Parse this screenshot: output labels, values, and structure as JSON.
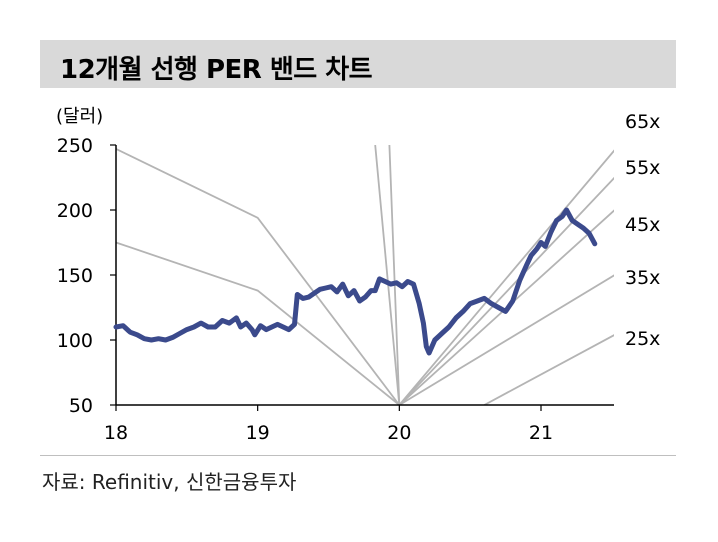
{
  "title": "12개월 선행 PER 밴드 차트",
  "unit_label": "(달러)",
  "source": "자료: Refinitiv, 신한금융투자",
  "colors": {
    "price": "#3b4a8c",
    "band": "#b4b4b4",
    "title_bg": "#d9d9d9"
  },
  "chart_data": {
    "type": "line",
    "ylim": [
      50,
      250
    ],
    "yticks": [
      50,
      100,
      150,
      200,
      250
    ],
    "xlim": [
      18,
      21.52
    ],
    "xticks": [
      18,
      19,
      20,
      21
    ],
    "xtick_labels": [
      "18",
      "19",
      "20",
      "21"
    ],
    "grid": false,
    "bands": [
      {
        "label": "65x",
        "points": [
          [
            19.83,
            250
          ],
          [
            20.0,
            50
          ],
          [
            21.55,
            250
          ]
        ]
      },
      {
        "label": "55x",
        "points": [
          [
            19.93,
            250
          ],
          [
            20.0,
            50
          ],
          [
            21.52,
            225
          ]
        ]
      },
      {
        "label": "45x",
        "points": [
          [
            18.0,
            247
          ],
          [
            19.0,
            194
          ],
          [
            20.0,
            50
          ],
          [
            21.52,
            200
          ]
        ]
      },
      {
        "label": "35x",
        "points": [
          [
            18.0,
            175
          ],
          [
            19.0,
            138
          ],
          [
            20.0,
            50
          ],
          [
            21.52,
            150
          ]
        ]
      },
      {
        "label": "25x",
        "points": [
          [
            20.6,
            50
          ],
          [
            21.52,
            104
          ]
        ]
      }
    ],
    "series": [
      {
        "points": [
          [
            18.0,
            110
          ],
          [
            18.05,
            111
          ],
          [
            18.1,
            106
          ],
          [
            18.15,
            104
          ],
          [
            18.2,
            101
          ],
          [
            18.25,
            100
          ],
          [
            18.3,
            101
          ],
          [
            18.35,
            100
          ],
          [
            18.4,
            102
          ],
          [
            18.45,
            105
          ],
          [
            18.5,
            108
          ],
          [
            18.55,
            110
          ],
          [
            18.6,
            113
          ],
          [
            18.65,
            110
          ],
          [
            18.7,
            110
          ],
          [
            18.75,
            115
          ],
          [
            18.8,
            113
          ],
          [
            18.85,
            117
          ],
          [
            18.88,
            110
          ],
          [
            18.92,
            113
          ],
          [
            18.96,
            108
          ],
          [
            18.98,
            104
          ],
          [
            19.02,
            111
          ],
          [
            19.06,
            108
          ],
          [
            19.1,
            110
          ],
          [
            19.14,
            112
          ],
          [
            19.18,
            110
          ],
          [
            19.22,
            108
          ],
          [
            19.26,
            112
          ],
          [
            19.28,
            135
          ],
          [
            19.32,
            132
          ],
          [
            19.36,
            133
          ],
          [
            19.4,
            136
          ],
          [
            19.44,
            139
          ],
          [
            19.48,
            140
          ],
          [
            19.52,
            141
          ],
          [
            19.56,
            137
          ],
          [
            19.6,
            143
          ],
          [
            19.64,
            134
          ],
          [
            19.68,
            138
          ],
          [
            19.72,
            130
          ],
          [
            19.76,
            133
          ],
          [
            19.8,
            138
          ],
          [
            19.83,
            138
          ],
          [
            19.86,
            147
          ],
          [
            19.9,
            145
          ],
          [
            19.94,
            143
          ],
          [
            19.98,
            144
          ],
          [
            20.02,
            141
          ],
          [
            20.06,
            145
          ],
          [
            20.1,
            143
          ],
          [
            20.14,
            128
          ],
          [
            20.17,
            113
          ],
          [
            20.19,
            95
          ],
          [
            20.21,
            90
          ],
          [
            20.25,
            100
          ],
          [
            20.3,
            105
          ],
          [
            20.35,
            110
          ],
          [
            20.4,
            117
          ],
          [
            20.45,
            122
          ],
          [
            20.5,
            128
          ],
          [
            20.55,
            130
          ],
          [
            20.6,
            132
          ],
          [
            20.65,
            128
          ],
          [
            20.7,
            125
          ],
          [
            20.75,
            122
          ],
          [
            20.8,
            130
          ],
          [
            20.85,
            146
          ],
          [
            20.9,
            158
          ],
          [
            20.93,
            165
          ],
          [
            20.97,
            170
          ],
          [
            21.0,
            175
          ],
          [
            21.03,
            172
          ],
          [
            21.07,
            183
          ],
          [
            21.11,
            192
          ],
          [
            21.15,
            195
          ],
          [
            21.18,
            200
          ],
          [
            21.22,
            192
          ],
          [
            21.26,
            189
          ],
          [
            21.3,
            186
          ],
          [
            21.34,
            182
          ],
          [
            21.38,
            174
          ]
        ]
      }
    ]
  }
}
